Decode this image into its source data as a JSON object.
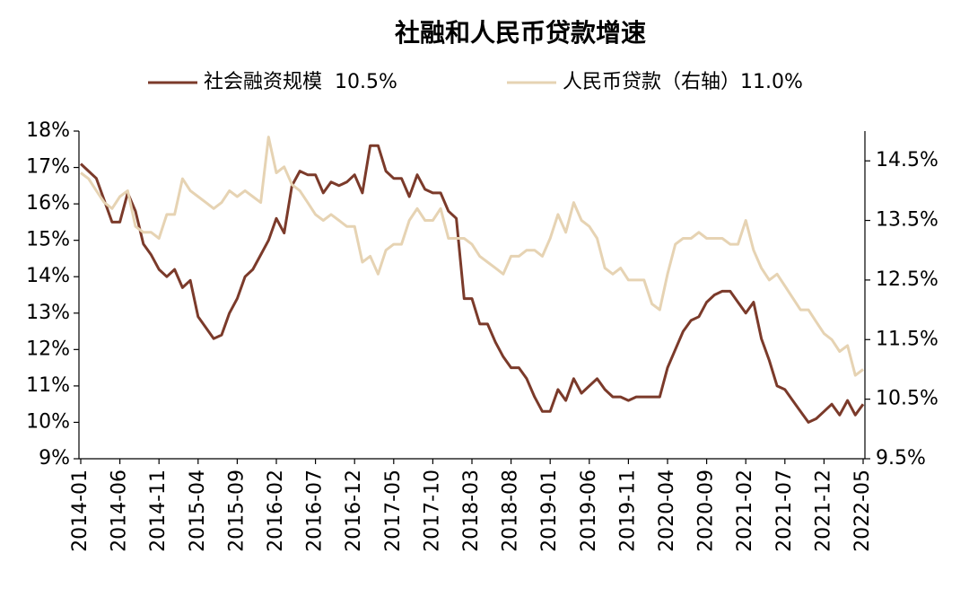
{
  "chart_data": {
    "type": "line",
    "title": "社融和人民币贷款增速",
    "categories": [
      "2014-01",
      null,
      null,
      null,
      null,
      "2014-06",
      null,
      null,
      null,
      null,
      "2014-11",
      null,
      null,
      null,
      null,
      "2015-04",
      null,
      null,
      null,
      null,
      "2015-09",
      null,
      null,
      null,
      null,
      "2016-02",
      null,
      null,
      null,
      null,
      "2016-07",
      null,
      null,
      null,
      null,
      "2016-12",
      null,
      null,
      null,
      null,
      "2017-05",
      null,
      null,
      null,
      null,
      "2017-10",
      null,
      null,
      null,
      null,
      "2018-03",
      null,
      null,
      null,
      null,
      "2018-08",
      null,
      null,
      null,
      null,
      "2019-01",
      null,
      null,
      null,
      null,
      "2019-06",
      null,
      null,
      null,
      null,
      "2019-11",
      null,
      null,
      null,
      null,
      "2020-04",
      null,
      null,
      null,
      null,
      "2020-09",
      null,
      null,
      null,
      null,
      "2021-02",
      null,
      null,
      null,
      null,
      "2021-07",
      null,
      null,
      null,
      null,
      "2021-12",
      null,
      null,
      null,
      null,
      "2022-05"
    ],
    "series": [
      {
        "name": "社会融资规模  10.5%",
        "color": "#7b3a2a",
        "values": [
          17.1,
          16.9,
          16.7,
          16.1,
          15.5,
          15.5,
          16.3,
          15.8,
          14.9,
          14.6,
          14.2,
          14.0,
          14.2,
          13.7,
          13.9,
          12.9,
          12.6,
          12.3,
          12.4,
          13.0,
          13.4,
          14.0,
          14.2,
          14.6,
          15.0,
          15.6,
          15.2,
          16.5,
          16.9,
          16.8,
          16.8,
          16.3,
          16.6,
          16.5,
          16.6,
          16.8,
          16.3,
          17.6,
          17.6,
          16.9,
          16.7,
          16.7,
          16.2,
          16.8,
          16.4,
          16.3,
          16.3,
          15.8,
          15.6,
          13.4,
          13.4,
          12.7,
          12.7,
          12.2,
          11.8,
          11.5,
          11.5,
          11.2,
          10.7,
          10.3,
          10.3,
          10.9,
          10.6,
          11.2,
          10.8,
          11.0,
          11.2,
          10.9,
          10.7,
          10.7,
          10.6,
          10.7,
          10.7,
          10.7,
          10.7,
          11.5,
          12.0,
          12.5,
          12.8,
          12.9,
          13.3,
          13.5,
          13.6,
          13.6,
          13.3,
          13.0,
          13.3,
          12.3,
          11.7,
          11.0,
          10.9,
          10.6,
          10.3,
          10.0,
          10.1,
          10.3,
          10.5,
          10.2,
          10.6,
          10.2,
          10.5
        ]
      },
      {
        "name": "人民币贷款（右轴）11.0%",
        "color": "#e6d3b3",
        "axis": "y2",
        "values": [
          14.3,
          14.2,
          14.0,
          13.8,
          13.7,
          13.9,
          14.0,
          13.4,
          13.3,
          13.3,
          13.2,
          13.6,
          13.6,
          14.2,
          14.0,
          13.9,
          13.8,
          13.7,
          13.8,
          14.0,
          13.9,
          14.0,
          13.9,
          13.8,
          14.9,
          14.3,
          14.4,
          14.1,
          14.0,
          13.8,
          13.6,
          13.5,
          13.6,
          13.5,
          13.4,
          13.4,
          12.8,
          12.9,
          12.6,
          13.0,
          13.1,
          13.1,
          13.5,
          13.7,
          13.5,
          13.5,
          13.7,
          13.2,
          13.2,
          13.2,
          13.1,
          12.9,
          12.8,
          12.7,
          12.6,
          12.9,
          12.9,
          13.0,
          13.0,
          12.9,
          13.2,
          13.6,
          13.3,
          13.8,
          13.5,
          13.4,
          13.2,
          12.7,
          12.6,
          12.7,
          12.5,
          12.5,
          12.5,
          12.1,
          12.0,
          12.6,
          13.1,
          13.2,
          13.2,
          13.3,
          13.2,
          13.2,
          13.2,
          13.1,
          13.1,
          13.5,
          13.0,
          12.7,
          12.5,
          12.6,
          12.4,
          12.2,
          12.0,
          12.0,
          11.8,
          11.6,
          11.5,
          11.3,
          11.4,
          10.9,
          11.0
        ]
      }
    ],
    "ylim": [
      9,
      18
    ],
    "yticks": [
      {
        "value": 9,
        "label": "9%"
      },
      {
        "value": 10,
        "label": "10%"
      },
      {
        "value": 11,
        "label": "11%"
      },
      {
        "value": 12,
        "label": "12%"
      },
      {
        "value": 13,
        "label": "13%"
      },
      {
        "value": 14,
        "label": "14%"
      },
      {
        "value": 15,
        "label": "15%"
      },
      {
        "value": 16,
        "label": "16%"
      },
      {
        "value": 17,
        "label": "17%"
      },
      {
        "value": 18,
        "label": "18%"
      }
    ],
    "y2lim": [
      9.5,
      15.0
    ],
    "y2ticks": [
      {
        "value": 9.5,
        "label": "9.5%"
      },
      {
        "value": 10.5,
        "label": "10.5%"
      },
      {
        "value": 11.5,
        "label": "11.5%"
      },
      {
        "value": 12.5,
        "label": "12.5%"
      },
      {
        "value": 13.5,
        "label": "13.5%"
      },
      {
        "value": 14.5,
        "label": "14.5%"
      }
    ],
    "legend": "top",
    "grid": false
  }
}
